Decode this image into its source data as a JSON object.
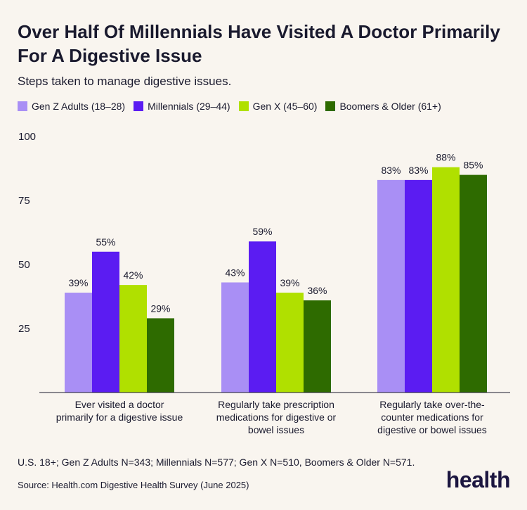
{
  "header": {
    "title": "Over Half Of Millennials Have Visited A Doctor Primarily For A Digestive Issue",
    "subtitle": "Steps taken to manage digestive issues."
  },
  "footer": {
    "footnote": "U.S. 18+; Gen Z Adults N=343; Millennials N=577; Gen X N=510, Boomers & Older N=571.",
    "source": "Source: Health.com Digestive Health Survey (June 2025)",
    "logo": "health"
  },
  "chart_data": {
    "type": "bar",
    "categories": [
      [
        "Ever visited a doctor",
        "primarily for a digestive issue"
      ],
      [
        "Regularly take prescription",
        "medications for digestive or",
        "bowel issues"
      ],
      [
        "Regularly take over-the-",
        "counter medications for",
        "digestive or bowel issues"
      ]
    ],
    "series": [
      {
        "name": "Gen Z Adults (18–28)",
        "color": "#a98ff5",
        "values": [
          39,
          43,
          83
        ]
      },
      {
        "name": "Millennials (29–44)",
        "color": "#5b1cf2",
        "values": [
          55,
          59,
          83
        ]
      },
      {
        "name": "Gen X (45–60)",
        "color": "#b0e000",
        "values": [
          42,
          39,
          88
        ]
      },
      {
        "name": "Boomers & Older (61+)",
        "color": "#2e6b00",
        "values": [
          29,
          36,
          85
        ]
      }
    ],
    "value_suffix": "%",
    "y_ticks": [
      25,
      50,
      75,
      100
    ],
    "ylim": [
      0,
      100
    ],
    "grid": false,
    "legend_position": "top-left"
  }
}
